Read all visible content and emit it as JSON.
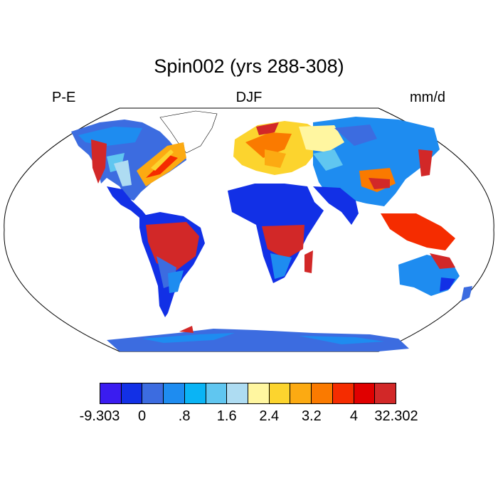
{
  "title": "Spin002 (yrs 288-308)",
  "left_label": "P-E",
  "center_label": "DJF",
  "right_label": "mm/d",
  "colorbar": {
    "colors": [
      "#3a1cf0",
      "#1230e6",
      "#3c6ce0",
      "#1e8cf0",
      "#0ab4f5",
      "#60c6f0",
      "#aedcf2",
      "#fff6a0",
      "#fcd42e",
      "#fcaa12",
      "#fa7a00",
      "#f52c00",
      "#e00000",
      "#d22828"
    ],
    "labels": [
      "-9.303",
      "0",
      ".8",
      "1.6",
      "2.4",
      "3.2",
      "4",
      "32.302"
    ]
  },
  "chart_data": {
    "type": "map",
    "title": "Spin002 (yrs 288-308)",
    "variable": "P-E",
    "season": "DJF",
    "units": "mm/d",
    "range": [
      -9.303,
      32.302
    ],
    "levels": [
      0,
      0.4,
      0.8,
      1.2,
      1.6,
      2.0,
      2.4,
      2.8,
      3.2,
      3.6,
      4.0,
      6.0,
      8.0
    ],
    "projection": "Robinson"
  }
}
